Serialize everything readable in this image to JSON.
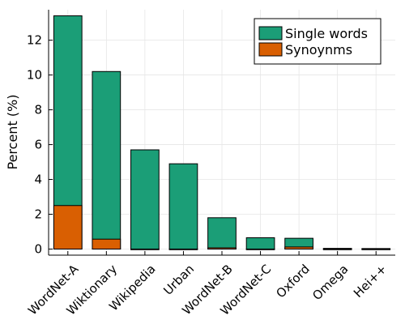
{
  "chart_data": {
    "type": "bar",
    "stacked": "overlay",
    "categories": [
      "WordNet-A",
      "Wiktionary",
      "Wikipedia",
      "Urban",
      "WordNet-B",
      "WordNet-C",
      "Oxford",
      "Omega",
      "Hei++"
    ],
    "series": [
      {
        "name": "Single words",
        "color": "#1b9e77",
        "values": [
          13.4,
          10.2,
          5.7,
          4.9,
          1.8,
          0.65,
          0.62,
          0.04,
          0.03
        ]
      },
      {
        "name": "Synoynms",
        "color": "#d95f02",
        "values": [
          2.5,
          0.57,
          0.0,
          0.0,
          0.07,
          0.0,
          0.12,
          0.0,
          0.0
        ]
      }
    ],
    "ylabel": "Percent (%)",
    "ylim": [
      -0.35,
      13.75
    ],
    "yticks": [
      0,
      2,
      4,
      6,
      8,
      10,
      12
    ],
    "grid": true,
    "legend": "top-right"
  }
}
